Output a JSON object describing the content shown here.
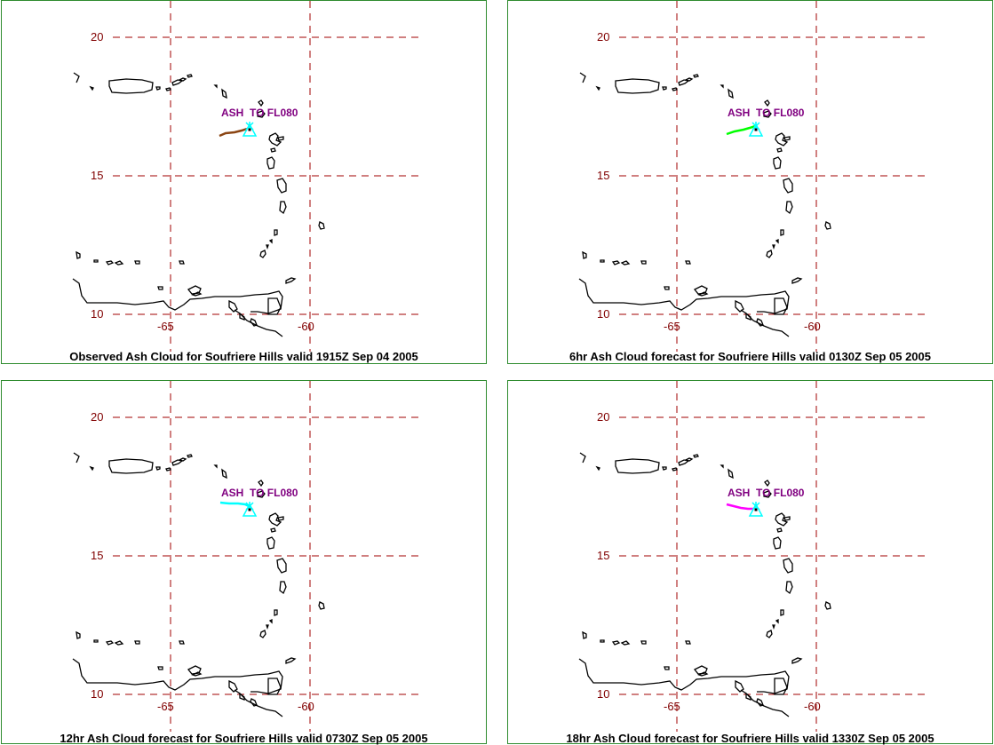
{
  "panels": [
    {
      "id": "observed",
      "caption": "Observed Ash Cloud for Soufriere  Hills valid 1915Z Sep 04 2005",
      "cloud_color": "#8b4513"
    },
    {
      "id": "6hr",
      "caption": "6hr Ash Cloud forecast for Soufriere  Hills valid 0130Z Sep 05 2005",
      "cloud_color": "#00ff00"
    },
    {
      "id": "12hr",
      "caption": "12hr Ash Cloud forecast for Soufriere  Hills valid 0730Z Sep 05 2005",
      "cloud_color": "#00ffff"
    },
    {
      "id": "18hr",
      "caption": "18hr Ash Cloud forecast for Soufriere  Hills valid 1330Z Sep 05 2005",
      "cloud_color": "#ff00ff"
    }
  ],
  "map": {
    "lat_labels": [
      "20",
      "15",
      "10"
    ],
    "lon_labels": [
      "-65",
      "-60"
    ],
    "ash_label": "ASH  TO FL080",
    "grid_color": "#a00000",
    "coast_color": "#000000",
    "volcano_marker_color": "#00ffff"
  }
}
